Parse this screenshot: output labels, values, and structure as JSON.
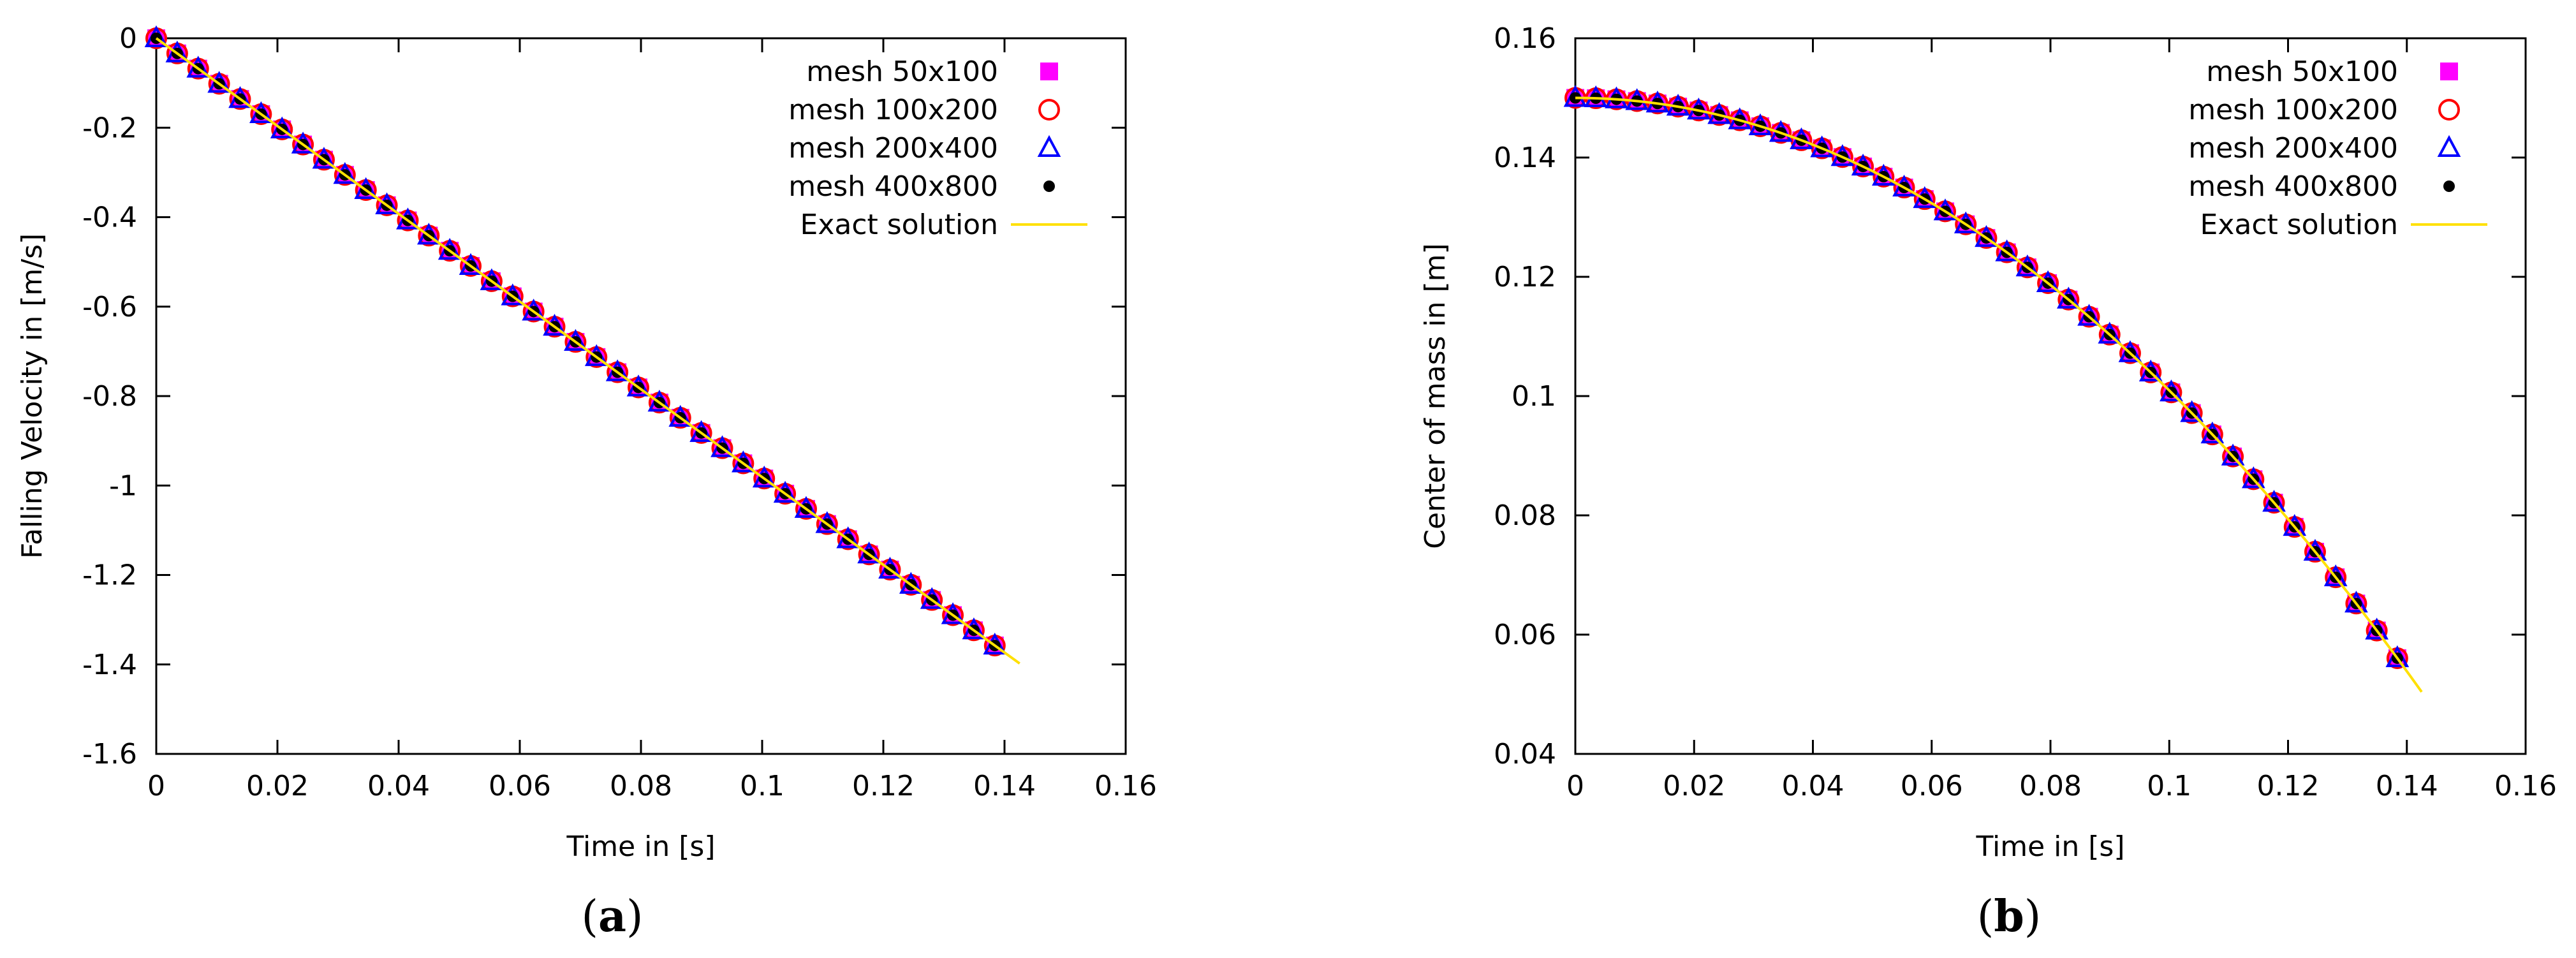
{
  "captions": [
    "a",
    "b"
  ],
  "legend": {
    "entries": [
      {
        "label": "mesh 50x100",
        "marker": "square",
        "color": "#ff00ff"
      },
      {
        "label": "mesh 100x200",
        "marker": "circle",
        "color": "#ff0000"
      },
      {
        "label": "mesh 200x400",
        "marker": "triangle",
        "color": "#0000ff"
      },
      {
        "label": "mesh 400x800",
        "marker": "dot",
        "color": "#000000"
      },
      {
        "label": "Exact solution",
        "marker": "line",
        "color": "#ffe000"
      }
    ]
  },
  "chart_data": [
    {
      "type": "line",
      "caption": "a",
      "xlabel": "Time in [s]",
      "ylabel": "Falling Velocity in [m/s]",
      "xlim": [
        0,
        0.16
      ],
      "ylim": [
        -1.6,
        0
      ],
      "xticks": [
        "0",
        "0.02",
        "0.04",
        "0.06",
        "0.08",
        "0.1",
        "0.12",
        "0.14",
        "0.16"
      ],
      "yticks": [
        "0",
        "-0.2",
        "-0.4",
        "-0.6",
        "-0.8",
        "-1",
        "-1.2",
        "-1.4",
        "-1.6"
      ],
      "legend_position": "top-right",
      "t_max": 0.1385,
      "marker_t_step": 0.00346,
      "series": [
        {
          "name": "mesh 50x100",
          "formula": "v = -9.81 t"
        },
        {
          "name": "mesh 100x200",
          "formula": "v = -9.81 t"
        },
        {
          "name": "mesh 200x400",
          "formula": "v = -9.81 t"
        },
        {
          "name": "mesh 400x800",
          "formula": "v = -9.81 t"
        },
        {
          "name": "Exact solution",
          "formula": "v = -9.81 t",
          "x_range": [
            0,
            0.1425
          ]
        }
      ]
    },
    {
      "type": "line",
      "caption": "b",
      "xlabel": "Time in [s]",
      "ylabel": "Center of mass in [m]",
      "xlim": [
        0,
        0.16
      ],
      "ylim": [
        0.04,
        0.16
      ],
      "xticks": [
        "0",
        "0.02",
        "0.04",
        "0.06",
        "0.08",
        "0.1",
        "0.12",
        "0.14",
        "0.16"
      ],
      "yticks": [
        "0.04",
        "0.06",
        "0.08",
        "0.1",
        "0.12",
        "0.14",
        "0.16"
      ],
      "legend_position": "top-right",
      "t_max": 0.1385,
      "marker_t_step": 0.00346,
      "series": [
        {
          "name": "mesh 50x100",
          "formula": "y = 0.15 - 4.905 t^2"
        },
        {
          "name": "mesh 100x200",
          "formula": "y = 0.15 - 4.905 t^2"
        },
        {
          "name": "mesh 200x400",
          "formula": "y = 0.15 - 4.905 t^2"
        },
        {
          "name": "mesh 400x800",
          "formula": "y = 0.15 - 4.905 t^2"
        },
        {
          "name": "Exact solution",
          "formula": "y = 0.15 - 4.905 t^2",
          "x_range": [
            0,
            0.1425
          ]
        }
      ]
    }
  ]
}
